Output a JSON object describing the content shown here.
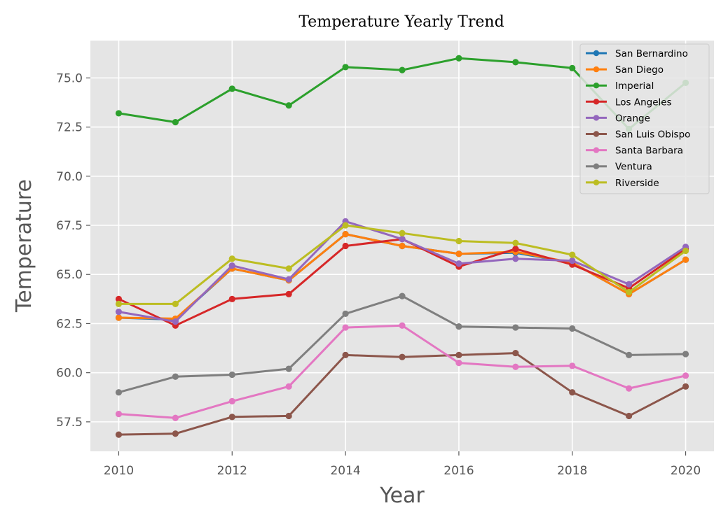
{
  "chart_data": {
    "type": "line",
    "title": "Temperature Yearly Trend",
    "xlabel": "Year",
    "ylabel": "Temperature",
    "x": [
      2010,
      2011,
      2012,
      2013,
      2014,
      2015,
      2016,
      2017,
      2018,
      2019,
      2020
    ],
    "xlim": [
      2009.5,
      2020.5
    ],
    "ylim": [
      56.0,
      76.9
    ],
    "x_ticks": [
      2010,
      2012,
      2014,
      2016,
      2018,
      2020
    ],
    "y_ticks": [
      57.5,
      60.0,
      62.5,
      65.0,
      67.5,
      70.0,
      72.5,
      75.0
    ],
    "x_tick_labels": [
      "2010",
      "2012",
      "2014",
      "2016",
      "2018",
      "2020"
    ],
    "y_tick_labels": [
      "57.5",
      "60.0",
      "62.5",
      "65.0",
      "67.5",
      "70.0",
      "72.5",
      "75.0"
    ],
    "grid": true,
    "legend_position": "top-right",
    "series": [
      {
        "name": "San Bernardino",
        "color": "#1f77b4",
        "values": [
          62.8,
          62.7,
          65.3,
          64.7,
          67.05,
          66.45,
          66.05,
          66.1,
          65.6,
          64.0,
          65.75
        ]
      },
      {
        "name": "San Diego",
        "color": "#ff7f0e",
        "values": [
          62.8,
          62.75,
          65.3,
          64.7,
          67.05,
          66.45,
          66.05,
          66.15,
          65.6,
          64.0,
          65.75
        ]
      },
      {
        "name": "Imperial",
        "color": "#2ca02c",
        "values": [
          73.2,
          72.75,
          74.45,
          73.6,
          75.55,
          75.4,
          76.0,
          75.8,
          75.5,
          72.4,
          74.75
        ]
      },
      {
        "name": "Los Angeles",
        "color": "#d62728",
        "values": [
          63.75,
          62.4,
          63.75,
          64.0,
          66.45,
          66.8,
          65.4,
          66.3,
          65.5,
          64.3,
          66.3
        ]
      },
      {
        "name": "Orange",
        "color": "#9467bd",
        "values": [
          63.1,
          62.6,
          65.45,
          64.75,
          67.7,
          66.8,
          65.55,
          65.8,
          65.7,
          64.5,
          66.4
        ]
      },
      {
        "name": "San Luis Obispo",
        "color": "#8c564b",
        "values": [
          56.85,
          56.9,
          57.75,
          57.8,
          60.9,
          60.8,
          60.9,
          61.0,
          59.0,
          57.8,
          59.3
        ]
      },
      {
        "name": "Santa Barbara",
        "color": "#e377c2",
        "values": [
          57.9,
          57.7,
          58.55,
          59.3,
          62.3,
          62.4,
          60.5,
          60.3,
          60.35,
          59.2,
          59.85
        ]
      },
      {
        "name": "Ventura",
        "color": "#7f7f7f",
        "values": [
          59.0,
          59.8,
          59.9,
          60.2,
          63.0,
          63.9,
          62.35,
          62.3,
          62.25,
          60.9,
          60.95
        ]
      },
      {
        "name": "Riverside",
        "color": "#bcbd22",
        "values": [
          63.5,
          63.5,
          65.8,
          65.3,
          67.5,
          67.1,
          66.7,
          66.6,
          66.0,
          64.1,
          66.2
        ]
      }
    ]
  }
}
